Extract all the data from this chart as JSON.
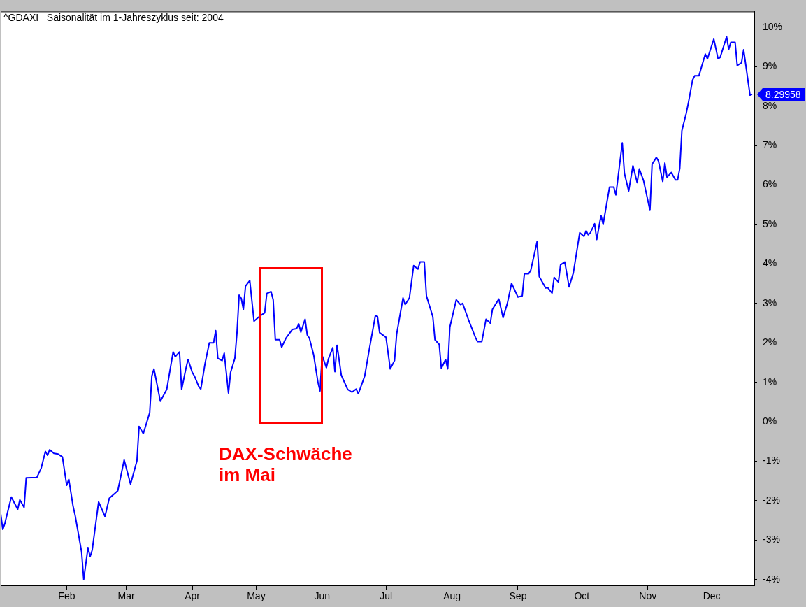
{
  "chart_data": {
    "type": "line",
    "title": "^GDAXI   Saisonalität im 1-Jahreszyklus seit: 2004",
    "x": [
      "--01-01",
      "--01-02",
      "--01-03",
      "--01-06",
      "--01-09",
      "--01-10",
      "--01-12",
      "--01-13",
      "--01-18",
      "--01-20",
      "--01-22",
      "--01-23",
      "--01-24",
      "--01-26",
      "--01-28",
      "--01-30",
      "--02-01",
      "--02-02",
      "--02-04",
      "--02-05",
      "--02-08",
      "--02-09",
      "--02-11",
      "--02-12",
      "--02-13",
      "--02-16",
      "--02-19",
      "--02-21",
      "--02-25",
      "--02-28",
      "--03-03",
      "--03-06",
      "--03-07",
      "--03-09",
      "--03-12",
      "--03-13",
      "--03-14",
      "--03-17",
      "--03-20",
      "--03-23",
      "--03-24",
      "--03-26",
      "--03-27",
      "--03-29",
      "--03-30",
      "--04-01",
      "--04-02",
      "--04-04",
      "--04-05",
      "--04-07",
      "--04-09",
      "--04-11",
      "--04-12",
      "--04-13",
      "--04-15",
      "--04-16",
      "--04-18",
      "--04-19",
      "--04-21",
      "--04-22",
      "--04-23",
      "--04-24",
      "--04-25",
      "--04-26",
      "--04-28",
      "--04-30",
      "--05-03",
      "--05-05",
      "--05-06",
      "--05-08",
      "--05-09",
      "--05-10",
      "--05-12",
      "--05-13",
      "--05-15",
      "--05-18",
      "--05-20",
      "--05-21",
      "--05-22",
      "--05-24",
      "--05-25",
      "--05-26",
      "--05-28",
      "--05-30",
      "--05-31",
      "--06-01",
      "--06-03",
      "--06-04",
      "--06-06",
      "--06-07",
      "--06-08",
      "--06-10",
      "--06-13",
      "--06-15",
      "--06-17",
      "--06-18",
      "--06-21",
      "--06-23",
      "--06-26",
      "--06-27",
      "--06-28",
      "--07-01",
      "--07-03",
      "--07-05",
      "--07-06",
      "--07-09",
      "--07-10",
      "--07-12",
      "--07-14",
      "--07-16",
      "--07-17",
      "--07-19",
      "--07-20",
      "--07-23",
      "--07-24",
      "--07-26",
      "--07-27",
      "--07-29",
      "--07-30",
      "--07-31",
      "--08-03",
      "--08-05",
      "--08-06",
      "--08-09",
      "--08-12",
      "--08-13",
      "--08-15",
      "--08-17",
      "--08-19",
      "--08-20",
      "--08-23",
      "--08-25",
      "--08-27",
      "--08-29",
      "--09-01",
      "--09-03",
      "--09-04",
      "--09-06",
      "--09-07",
      "--09-10",
      "--09-11",
      "--09-14",
      "--09-15",
      "--09-17",
      "--09-18",
      "--09-20",
      "--09-21",
      "--09-23",
      "--09-25",
      "--09-27",
      "--09-30",
      "--10-02",
      "--10-03",
      "--10-04",
      "--10-05",
      "--10-07",
      "--10-08",
      "--10-10",
      "--10-11",
      "--10-14",
      "--10-16",
      "--10-17",
      "--10-20",
      "--10-21",
      "--10-23",
      "--10-25",
      "--10-27",
      "--10-28",
      "--10-30",
      "--11-02",
      "--11-03",
      "--11-05",
      "--11-06",
      "--11-08",
      "--11-09",
      "--11-10",
      "--11-12",
      "--11-14",
      "--11-15",
      "--11-16",
      "--11-17",
      "--11-19",
      "--11-20",
      "--11-22",
      "--11-23",
      "--11-25",
      "--11-28",
      "--11-29",
      "--12-02",
      "--12-04",
      "--12-05",
      "--12-08",
      "--12-09",
      "--12-10",
      "--12-12",
      "--12-13",
      "--12-15",
      "--12-16",
      "--12-19",
      "--12-20"
    ],
    "series": [
      {
        "color": "#0000ff",
        "values": [
          -2.33,
          -2.73,
          -2.57,
          -1.91,
          -2.22,
          -1.98,
          -2.17,
          -1.42,
          -1.41,
          -1.18,
          -0.75,
          -0.85,
          -0.71,
          -0.8,
          -0.82,
          -0.89,
          -1.61,
          -1.46,
          -2.14,
          -2.38,
          -3.3,
          -4.0,
          -3.19,
          -3.42,
          -3.25,
          -2.03,
          -2.4,
          -1.94,
          -1.75,
          -0.97,
          -1.58,
          -0.99,
          -0.12,
          -0.3,
          0.23,
          1.16,
          1.34,
          0.52,
          0.82,
          1.77,
          1.65,
          1.77,
          0.82,
          1.35,
          1.58,
          1.25,
          1.16,
          0.9,
          0.83,
          1.48,
          2.0,
          2.0,
          2.31,
          1.61,
          1.55,
          1.74,
          0.73,
          1.25,
          1.61,
          2.26,
          3.21,
          3.13,
          2.85,
          3.44,
          3.58,
          2.55,
          2.69,
          2.76,
          3.25,
          3.3,
          3.09,
          2.08,
          2.08,
          1.89,
          2.12,
          2.34,
          2.36,
          2.48,
          2.27,
          2.6,
          2.2,
          2.12,
          1.7,
          1.01,
          0.78,
          1.68,
          1.37,
          1.6,
          1.88,
          1.27,
          1.94,
          1.18,
          0.82,
          0.75,
          0.83,
          0.71,
          1.16,
          1.79,
          2.69,
          2.67,
          2.26,
          2.14,
          1.34,
          1.55,
          2.22,
          3.14,
          2.97,
          3.14,
          3.96,
          3.87,
          4.05,
          4.05,
          3.19,
          2.66,
          2.08,
          1.96,
          1.35,
          1.58,
          1.34,
          2.4,
          3.09,
          2.97,
          3.0,
          2.55,
          2.14,
          2.03,
          2.03,
          2.6,
          2.5,
          2.85,
          3.11,
          2.64,
          3.0,
          3.51,
          3.16,
          3.19,
          3.75,
          3.75,
          3.84,
          4.57,
          3.68,
          3.39,
          3.4,
          3.26,
          3.66,
          3.54,
          3.98,
          4.05,
          3.42,
          3.77,
          4.79,
          4.7,
          4.84,
          4.74,
          4.79,
          5.02,
          4.62,
          5.23,
          5.0,
          5.95,
          5.95,
          5.75,
          7.07,
          6.3,
          5.85,
          6.49,
          6.06,
          6.41,
          6.11,
          5.36,
          6.53,
          6.7,
          6.61,
          6.09,
          6.56,
          6.2,
          6.32,
          6.13,
          6.13,
          6.42,
          7.38,
          7.81,
          8.07,
          8.66,
          8.77,
          8.77,
          9.32,
          9.2,
          9.7,
          9.2,
          9.24,
          9.76,
          9.44,
          9.62,
          9.62,
          9.03,
          9.1,
          9.43,
          8.28,
          8.29958
        ],
        "value_labels": [
          null,
          null,
          null,
          null,
          null,
          null,
          null,
          null,
          null,
          null,
          null,
          null,
          null,
          null,
          null,
          null,
          null,
          null,
          null,
          null,
          null,
          null,
          null,
          null,
          null,
          null,
          null,
          null,
          null,
          null,
          null,
          null,
          null,
          null,
          null,
          null,
          null,
          null,
          null,
          null,
          null,
          null,
          null,
          null,
          null,
          null,
          null,
          null,
          null,
          null,
          null,
          null,
          null,
          null,
          null,
          null,
          null,
          null,
          null,
          null,
          null,
          null,
          null,
          null,
          null,
          null,
          null,
          null,
          null,
          null,
          null,
          null,
          null,
          null,
          null,
          null,
          null,
          null,
          null,
          null,
          null,
          null,
          null,
          null,
          null,
          null,
          null,
          null,
          null,
          null,
          null,
          null,
          null,
          null,
          null,
          null,
          null,
          null,
          null,
          null,
          null,
          null,
          null,
          null,
          null,
          null,
          null,
          null,
          null,
          null,
          null,
          null,
          null,
          null,
          null,
          null,
          null,
          null,
          null,
          null,
          null,
          null,
          null,
          null,
          null,
          null,
          null,
          null,
          null,
          null,
          null,
          null,
          null,
          null,
          null,
          null,
          null,
          null,
          null,
          null,
          null,
          null,
          null,
          null,
          null,
          null,
          null,
          null,
          null,
          null,
          null,
          null,
          null,
          null,
          null,
          null,
          null,
          null,
          null,
          null,
          null,
          null,
          null,
          null,
          null,
          null,
          null,
          null,
          null,
          null,
          null,
          null,
          null,
          null,
          null,
          null,
          null,
          null,
          null,
          null,
          null,
          null,
          null,
          null,
          null,
          null,
          null,
          null,
          null,
          null,
          null,
          null,
          null,
          null,
          null,
          null,
          null,
          null,
          null,
          "8.29958"
        ]
      }
    ],
    "xlim": [
      "--01-01",
      "--12-21"
    ],
    "xticks": [
      {
        "value": "--02-01",
        "label": "Feb"
      },
      {
        "value": "--03-01",
        "label": "Mar"
      },
      {
        "value": "--04-01",
        "label": "Apr"
      },
      {
        "value": "--05-01",
        "label": "May"
      },
      {
        "value": "--06-01",
        "label": "Jun"
      },
      {
        "value": "--07-01",
        "label": "Jul"
      },
      {
        "value": "--08-01",
        "label": "Aug"
      },
      {
        "value": "--09-01",
        "label": "Sep"
      },
      {
        "value": "--10-01",
        "label": "Oct"
      },
      {
        "value": "--11-01",
        "label": "Nov"
      },
      {
        "value": "--12-01",
        "label": "Dec"
      }
    ],
    "ylim": [
      -4.15,
      10.4
    ],
    "yticks": [
      {
        "value": -4,
        "label": "-4%"
      },
      {
        "value": -3,
        "label": "-3%"
      },
      {
        "value": -2,
        "label": "-2%"
      },
      {
        "value": -1,
        "label": "-1%"
      },
      {
        "value": 0,
        "label": "0%"
      },
      {
        "value": 1,
        "label": "1%"
      },
      {
        "value": 2,
        "label": "2%"
      },
      {
        "value": 3,
        "label": "3%"
      },
      {
        "value": 4,
        "label": "4%"
      },
      {
        "value": 5,
        "label": "5%"
      },
      {
        "value": 6,
        "label": "6%"
      },
      {
        "value": 7,
        "label": "7%"
      },
      {
        "value": 8,
        "label": "8%"
      },
      {
        "value": 9,
        "label": "9%"
      },
      {
        "value": 10,
        "label": "10%"
      }
    ],
    "annotations": [
      "DAX-Schwäche\nim Mai"
    ]
  }
}
